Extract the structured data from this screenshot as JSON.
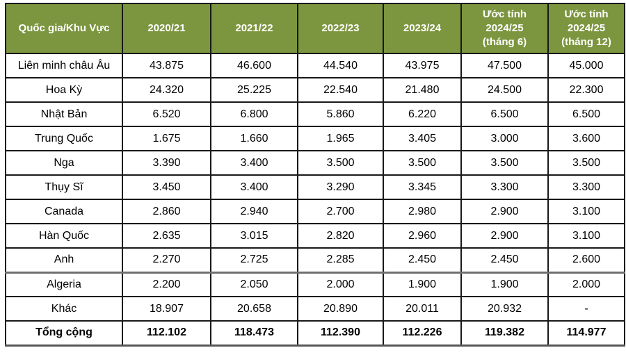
{
  "table": {
    "header": {
      "country_label": "Quốc gia/Khu Vực",
      "year_columns": [
        "2020/21",
        "2021/22",
        "2022/23",
        "2023/24",
        "Ước tính\n2024/25\n(tháng 6)",
        "Ước tính\n2024/25\n(tháng 12)"
      ]
    },
    "rows": [
      {
        "label": "Liên minh châu Âu",
        "values": [
          "43.875",
          "46.600",
          "44.540",
          "43.975",
          "47.500",
          "45.000"
        ]
      },
      {
        "label": "Hoa Kỳ",
        "values": [
          "24.320",
          "25.225",
          "22.540",
          "21.480",
          "24.500",
          "22.300"
        ]
      },
      {
        "label": "Nhật Bản",
        "values": [
          "6.520",
          "6.800",
          "5.860",
          "6.220",
          "6.500",
          "6.500"
        ]
      },
      {
        "label": "Trung Quốc",
        "values": [
          "1.675",
          "1.660",
          "1.965",
          "3.405",
          "3.000",
          "3.600"
        ]
      },
      {
        "label": "Nga",
        "values": [
          "3.390",
          "3.400",
          "3.500",
          "3.500",
          "3.500",
          "3.500"
        ]
      },
      {
        "label": "Thụy Sĩ",
        "values": [
          "3.450",
          "3.400",
          "3.290",
          "3.345",
          "3.300",
          "3.300"
        ]
      },
      {
        "label": "Canada",
        "values": [
          "2.860",
          "2.940",
          "2.700",
          "2.980",
          "2.900",
          "3.100"
        ]
      },
      {
        "label": "Hàn Quốc",
        "values": [
          "2.635",
          "3.015",
          "2.820",
          "2.960",
          "2.900",
          "3.100"
        ]
      },
      {
        "label": "Anh",
        "values": [
          "2.270",
          "2.725",
          "2.285",
          "2.450",
          "2.450",
          "2.600"
        ]
      },
      {
        "label": "Algeria",
        "values": [
          "2.200",
          "2.050",
          "2.000",
          "1.900",
          "1.900",
          "2.000"
        ],
        "heavy_top": true
      },
      {
        "label": "Khác",
        "values": [
          "18.907",
          "20.658",
          "20.890",
          "20.011",
          "20.932",
          "-"
        ]
      },
      {
        "label": "Tổng cộng",
        "values": [
          "112.102",
          "118.473",
          "112.390",
          "112.226",
          "119.382",
          "114.977"
        ],
        "total": true
      }
    ],
    "colors": {
      "header_bg": "#7c953f",
      "header_text": "#ffffff",
      "body_text": "#000000",
      "grid_border": "#181818",
      "heavy_line": "#6f6f6f"
    }
  },
  "chart_data": {
    "type": "table",
    "columns": [
      "Quốc gia/Khu Vực",
      "2020/21",
      "2021/22",
      "2022/23",
      "2023/24",
      "Ước tính 2024/25 (tháng 6)",
      "Ước tính 2024/25 (tháng 12)"
    ],
    "rows": [
      {
        "name": "Liên minh châu Âu",
        "values": [
          43875,
          46600,
          44540,
          43975,
          47500,
          45000
        ]
      },
      {
        "name": "Hoa Kỳ",
        "values": [
          24320,
          25225,
          22540,
          21480,
          24500,
          22300
        ]
      },
      {
        "name": "Nhật Bản",
        "values": [
          6520,
          6800,
          5860,
          6220,
          6500,
          6500
        ]
      },
      {
        "name": "Trung Quốc",
        "values": [
          1675,
          1660,
          1965,
          3405,
          3000,
          3600
        ]
      },
      {
        "name": "Nga",
        "values": [
          3390,
          3400,
          3500,
          3500,
          3500,
          3500
        ]
      },
      {
        "name": "Thụy Sĩ",
        "values": [
          3450,
          3400,
          3290,
          3345,
          3300,
          3300
        ]
      },
      {
        "name": "Canada",
        "values": [
          2860,
          2940,
          2700,
          2980,
          2900,
          3100
        ]
      },
      {
        "name": "Hàn Quốc",
        "values": [
          2635,
          3015,
          2820,
          2960,
          2900,
          3100
        ]
      },
      {
        "name": "Anh",
        "values": [
          2270,
          2725,
          2285,
          2450,
          2450,
          2600
        ]
      },
      {
        "name": "Algeria",
        "values": [
          2200,
          2050,
          2000,
          1900,
          1900,
          2000
        ]
      },
      {
        "name": "Khác",
        "values": [
          18907,
          20658,
          20890,
          20011,
          20932,
          null
        ]
      },
      {
        "name": "Tổng cộng",
        "values": [
          112102,
          118473,
          112390,
          112226,
          119382,
          114977
        ]
      }
    ],
    "layout_hints": {
      "header_fill": "#7c953f",
      "header_text_color": "#ffffff",
      "thousands_separator": ".",
      "grid": true
    }
  }
}
